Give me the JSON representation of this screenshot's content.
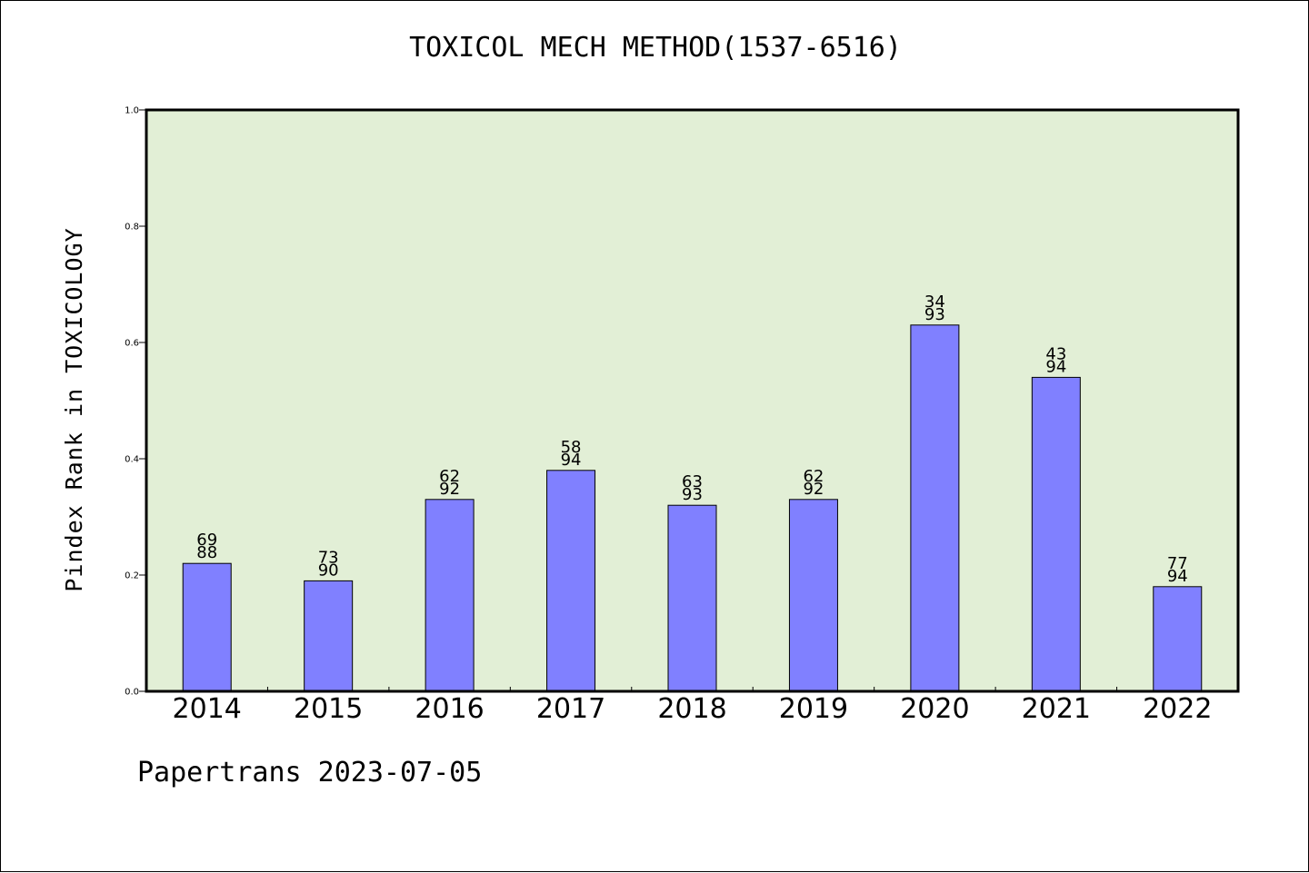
{
  "chart_data": {
    "type": "bar",
    "title": "TOXICOL MECH METHOD(1537-6516)",
    "xlabel": "",
    "ylabel": "Pindex Rank in TOXICOLOGY",
    "ylim": [
      0.0,
      1.0
    ],
    "yticks": [
      "0.0",
      "0.2",
      "0.4",
      "0.6",
      "0.8",
      "1.0"
    ],
    "categories": [
      "2014",
      "2015",
      "2016",
      "2017",
      "2018",
      "2019",
      "2020",
      "2021",
      "2022"
    ],
    "values": [
      0.22,
      0.19,
      0.33,
      0.38,
      0.32,
      0.33,
      0.63,
      0.54,
      0.18
    ],
    "labels_top": [
      "69",
      "73",
      "62",
      "58",
      "63",
      "62",
      "34",
      "43",
      "77"
    ],
    "labels_bottom": [
      "88",
      "90",
      "92",
      "94",
      "93",
      "92",
      "93",
      "94",
      "94"
    ],
    "grid": false,
    "colors": {
      "plot_bg": "#e2efd6",
      "bar": "#8080ff",
      "axis": "#000000"
    }
  },
  "footer": "Papertrans 2023-07-05"
}
